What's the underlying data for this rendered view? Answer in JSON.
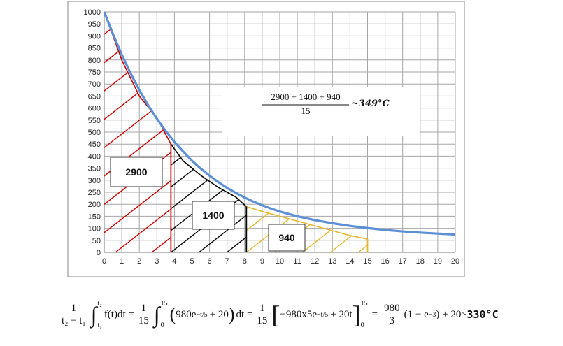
{
  "chart_data": {
    "type": "line",
    "xlim": [
      0,
      20
    ],
    "ylim": [
      0,
      1000
    ],
    "x_ticks": [
      "0",
      "1",
      "2",
      "3",
      "4",
      "5",
      "6",
      "7",
      "8",
      "9",
      "10",
      "11",
      "12",
      "13",
      "14",
      "15",
      "16",
      "17",
      "18",
      "19",
      "20"
    ],
    "y_ticks": [
      "0",
      "50",
      "100",
      "150",
      "200",
      "250",
      "300",
      "350",
      "400",
      "450",
      "500",
      "550",
      "600",
      "650",
      "700",
      "750",
      "800",
      "850",
      "900",
      "950",
      "1000"
    ],
    "grid": true,
    "series": [
      {
        "color": "#5b8fd6",
        "x": [
          0,
          0.5,
          1,
          1.5,
          2,
          2.5,
          3,
          3.5,
          4,
          4.5,
          5,
          5.5,
          6,
          6.5,
          7,
          7.5,
          8,
          8.5,
          9,
          9.5,
          10,
          11,
          12,
          13,
          14,
          15,
          16,
          17,
          18,
          19,
          20
        ],
        "y": [
          1000,
          908,
          822,
          745,
          675,
          612,
          556,
          505,
          459,
          419,
          381,
          348,
          319,
          292,
          268,
          247,
          228,
          211,
          196,
          182,
          170,
          150,
          134,
          121,
          110,
          101,
          93,
          87,
          82,
          78,
          74
        ]
      }
    ],
    "approximation": {
      "segments": [
        {
          "color": "#cc0000",
          "x": [
            0,
            1,
            2,
            3,
            3.8
          ],
          "y": [
            1000,
            800,
            650,
            560,
            450
          ]
        },
        {
          "color": "#000000",
          "x": [
            3.8,
            4.5,
            5.5,
            6.5,
            7.5,
            8.1
          ],
          "y": [
            450,
            380,
            320,
            270,
            230,
            190
          ]
        },
        {
          "color": "#e6b82e",
          "x": [
            8.1,
            9,
            10,
            11,
            12,
            13,
            14,
            15
          ],
          "y": [
            190,
            170,
            150,
            130,
            110,
            90,
            70,
            55
          ]
        }
      ],
      "dividers": [
        {
          "color": "#cc0000",
          "x": 3.8,
          "top": 450
        },
        {
          "color": "#000000",
          "x": 8.1,
          "top": 190
        },
        {
          "color": "#e6b82e",
          "x": 15,
          "top": 55
        }
      ]
    },
    "areas": [
      {
        "label": "2900",
        "color": "#cc0000",
        "x_range": [
          0,
          3.8
        ]
      },
      {
        "label": "1400",
        "color": "#000000",
        "x_range": [
          3.8,
          8.1
        ]
      },
      {
        "label": "940",
        "color": "#e6b82e",
        "x_range": [
          8.1,
          15
        ]
      }
    ],
    "annotation": {
      "numerator": "2900 + 1400 + 940",
      "denominator": "15",
      "result": "~349°C"
    }
  },
  "formula": {
    "f1_num": "1",
    "f1_den": "t₂ − t₁",
    "int1_upper": "t₂",
    "int1_lower": "t₁",
    "int1_body": "f(t)dt =",
    "f2_num": "1",
    "f2_den": "15",
    "int2_upper": "15",
    "int2_lower": "0",
    "int2_body_a": "980e",
    "int2_exp": "−t/5",
    "int2_body_b": "+ 20",
    "int2_dt": "dt =",
    "f3_num": "1",
    "f3_den": "15",
    "bracket_body_a": "−980x5e",
    "bracket_exp": "−t/5",
    "bracket_body_b": "+ 20t",
    "bracket_upper": "15",
    "bracket_lower": "0",
    "eq": "=",
    "f4_num": "980",
    "f4_den": "3",
    "tail": "(1 − e",
    "tail_exp": "−3",
    "tail_b": ") + 20~",
    "result": "330°C"
  }
}
